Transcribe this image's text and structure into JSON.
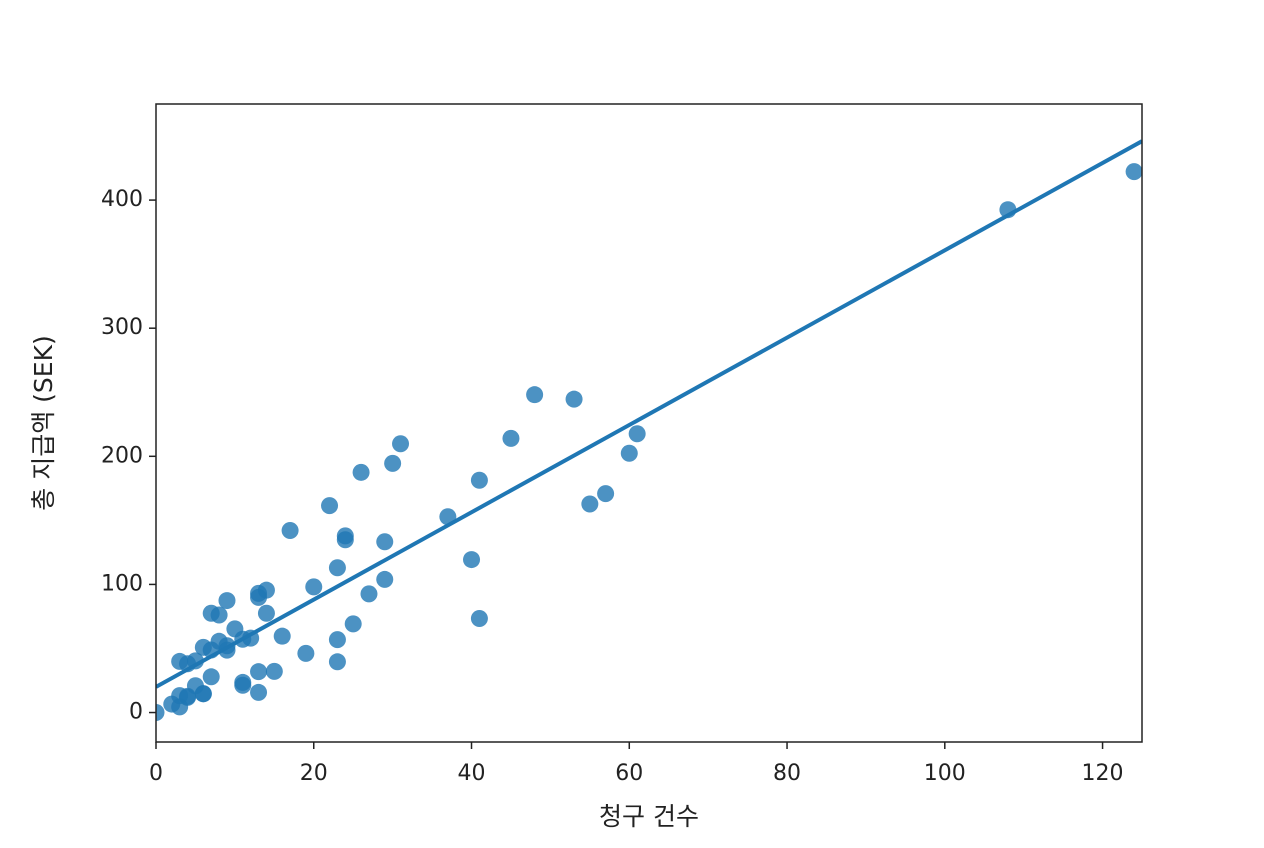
{
  "chart_data": {
    "type": "scatter",
    "xlabel": "청구 건수",
    "ylabel": "총 지급액 (SEK)",
    "color": "#1f77b4",
    "x": [
      108,
      19,
      13,
      124,
      40,
      57,
      23,
      14,
      45,
      10,
      5,
      48,
      11,
      23,
      7,
      2,
      24,
      6,
      3,
      23,
      6,
      9,
      9,
      3,
      29,
      7,
      4,
      20,
      7,
      4,
      0,
      25,
      6,
      5,
      22,
      11,
      61,
      12,
      4,
      16,
      13,
      60,
      41,
      37,
      55,
      41,
      11,
      27,
      8,
      3,
      17,
      13,
      13,
      15,
      8,
      29,
      30,
      24,
      9,
      31,
      14,
      53,
      26
    ],
    "values": [
      392.5,
      46.2,
      15.7,
      422.2,
      119.4,
      170.9,
      56.9,
      77.5,
      214,
      65.3,
      20.9,
      248.1,
      23.5,
      39.6,
      48.8,
      6.6,
      134.9,
      50.9,
      4.4,
      113,
      14.8,
      48.7,
      52.1,
      13.2,
      103.9,
      77.5,
      11.8,
      98.1,
      27.9,
      38.1,
      0,
      69.2,
      14.6,
      40.3,
      161.5,
      57.2,
      217.6,
      58.1,
      12.6,
      59.6,
      89.9,
      202.4,
      181.3,
      152.8,
      162.8,
      73.4,
      21.3,
      92.6,
      76.1,
      39.9,
      142.1,
      93,
      31.9,
      32.1,
      55.6,
      133.3,
      194.5,
      137.9,
      87.4,
      209.8,
      95.5,
      244.6,
      187.5
    ],
    "regression": {
      "x": [
        0,
        125
      ],
      "y": [
        20,
        446
      ]
    },
    "xlim": [
      0,
      125
    ],
    "ylim": [
      -23,
      475
    ],
    "xticks": [
      0,
      20,
      40,
      60,
      80,
      100,
      120
    ],
    "yticks": [
      0,
      100,
      200,
      300,
      400
    ]
  }
}
